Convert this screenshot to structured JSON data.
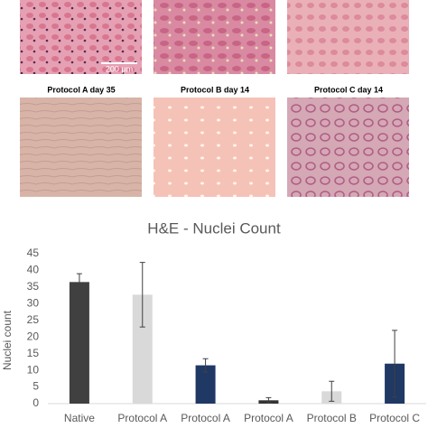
{
  "figure": {
    "scale_bar": "200 µm",
    "panel_labels": [
      "Protocol A day 35",
      "Protocol B day 14",
      "Protocol C day 14"
    ]
  },
  "chart_data": {
    "type": "bar",
    "title": "H&E - Nuclei Count",
    "y_label": "Nuclei count",
    "categories": [
      "Native",
      "Protocol A",
      "Protocol A",
      "Protocol A",
      "Protocol B",
      "Protocol C"
    ],
    "values": [
      36.5,
      32.7,
      11.5,
      1,
      3.7,
      12
    ],
    "errors": [
      2.5,
      9.7,
      2,
      0.8,
      3,
      10
    ],
    "colors": [
      "#404040",
      "#d9d9d9",
      "#1f3864",
      "#333333",
      "#d9d9d9",
      "#1f3864"
    ],
    "ylim": [
      0,
      45
    ],
    "yticks": [
      0,
      5,
      10,
      15,
      20,
      25,
      30,
      35,
      40,
      45
    ],
    "grid": false
  }
}
